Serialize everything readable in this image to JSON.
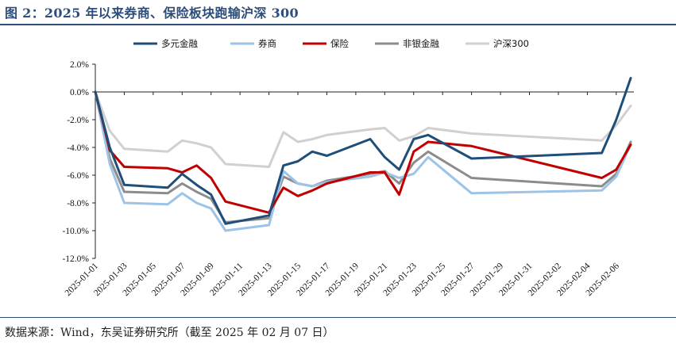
{
  "header": {
    "title": "图 2：2025 年以来券商、保险板块跑输沪深 300"
  },
  "footer": {
    "source": "数据来源：Wind，东吴证券研究所（截至 2025 年 02 月 07 日）"
  },
  "chart_data": {
    "type": "line",
    "title": "",
    "xlabel": "",
    "ylabel": "",
    "ylim": [
      -12,
      2
    ],
    "yticks": [
      2,
      0,
      -2,
      -4,
      -6,
      -8,
      -10,
      -12
    ],
    "ytick_labels": [
      "2.0%",
      "0.0%",
      "-2.0%",
      "-4.0%",
      "-6.0%",
      "-8.0%",
      "-10.0%",
      "-12.0%"
    ],
    "xtick_labels": [
      "2025-01-01",
      "2025-01-03",
      "2025-01-05",
      "2025-01-07",
      "2025-01-09",
      "2025-01-11",
      "2025-01-13",
      "2025-01-15",
      "2025-01-17",
      "2025-01-19",
      "2025-01-21",
      "2025-01-23",
      "2025-01-25",
      "2025-01-27",
      "2025-01-29",
      "2025-01-31",
      "2025-02-02",
      "2025-02-04",
      "2025-02-06"
    ],
    "x": [
      "2025-01-01",
      "2025-01-02",
      "2025-01-03",
      "2025-01-06",
      "2025-01-07",
      "2025-01-08",
      "2025-01-09",
      "2025-01-10",
      "2025-01-13",
      "2025-01-14",
      "2025-01-15",
      "2025-01-16",
      "2025-01-17",
      "2025-01-20",
      "2025-01-21",
      "2025-01-22",
      "2025-01-23",
      "2025-01-24",
      "2025-01-27",
      "2025-02-05",
      "2025-02-06",
      "2025-02-07"
    ],
    "grid": false,
    "legend_position": "top",
    "series": [
      {
        "name": "多元金融",
        "color": "#1f4e79",
        "values": [
          0,
          -4.0,
          -6.7,
          -6.9,
          -5.9,
          -6.7,
          -7.4,
          -9.5,
          -8.9,
          -5.3,
          -5.0,
          -4.3,
          -4.6,
          -3.4,
          -4.7,
          -5.6,
          -3.4,
          -3.1,
          -4.8,
          -4.4,
          -2.0,
          1.0
        ]
      },
      {
        "name": "券商",
        "color": "#9dc3e6",
        "values": [
          0,
          -5.2,
          -8.0,
          -8.1,
          -7.3,
          -8.0,
          -8.4,
          -10.0,
          -9.6,
          -5.7,
          -6.6,
          -6.8,
          -6.5,
          -6.1,
          -5.8,
          -6.2,
          -5.9,
          -4.7,
          -7.3,
          -7.1,
          -6.1,
          -3.8
        ]
      },
      {
        "name": "保险",
        "color": "#c00000",
        "values": [
          0,
          -4.2,
          -5.4,
          -5.5,
          -5.8,
          -5.3,
          -6.2,
          -7.9,
          -8.7,
          -6.9,
          -7.5,
          -7.1,
          -6.6,
          -5.8,
          -5.8,
          -7.4,
          -4.3,
          -3.6,
          -3.9,
          -6.2,
          -5.6,
          -3.8
        ]
      },
      {
        "name": "非银金融",
        "color": "#8c8c8c",
        "values": [
          0,
          -4.8,
          -7.2,
          -7.3,
          -6.6,
          -7.2,
          -7.7,
          -9.4,
          -9.1,
          -6.1,
          -6.6,
          -6.8,
          -6.4,
          -5.9,
          -5.7,
          -6.6,
          -5.1,
          -4.3,
          -6.2,
          -6.8,
          -5.9,
          -3.6
        ]
      },
      {
        "name": "沪深300",
        "color": "#d0d0d0",
        "values": [
          0,
          -2.8,
          -4.1,
          -4.3,
          -3.5,
          -3.7,
          -4.0,
          -5.2,
          -5.4,
          -2.9,
          -3.6,
          -3.4,
          -3.1,
          -2.7,
          -2.6,
          -3.5,
          -3.2,
          -2.6,
          -3.0,
          -3.5,
          -2.4,
          -1.0
        ]
      }
    ]
  }
}
